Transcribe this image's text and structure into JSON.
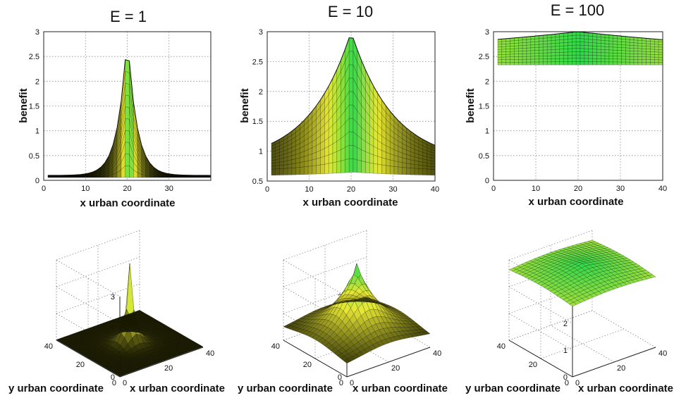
{
  "chart_data": [
    {
      "type": "area",
      "title": "E = 1",
      "xlabel": "x urban coordinate",
      "ylabel": "benefit",
      "xlim": [
        0,
        40
      ],
      "ylim": [
        0,
        3
      ],
      "xticks": [
        "0",
        "10",
        "20",
        "30"
      ],
      "yticks": [
        "0",
        "0.5",
        "1",
        "1.5",
        "2",
        "2.5",
        "3"
      ],
      "grid": true,
      "surface": {
        "E": 1,
        "peak_x": 20,
        "peak_value": 3.0,
        "min_edge_value": 0.1
      }
    },
    {
      "type": "area",
      "title": "E = 10",
      "xlabel": "x urban coordinate",
      "ylabel": "benefit",
      "xlim": [
        0,
        40
      ],
      "ylim": [
        0.5,
        3
      ],
      "xticks": [
        "0",
        "10",
        "20",
        "30",
        "40"
      ],
      "yticks": [
        "0.5",
        "1",
        "1.5",
        "2",
        "2.5",
        "3"
      ],
      "grid": true,
      "surface": {
        "E": 10,
        "peak_x": 20,
        "peak_value": 3.0,
        "min_edge_value": 0.8
      }
    },
    {
      "type": "area",
      "title": "E = 100",
      "xlabel": "x urban coordinate",
      "ylabel": "benefit",
      "xlim": [
        0,
        40
      ],
      "ylim": [
        0,
        3
      ],
      "xticks": [
        "0",
        "10",
        "20",
        "30",
        "40"
      ],
      "yticks": [
        "0",
        "0.5",
        "1",
        "1.5",
        "2",
        "2.5",
        "3"
      ],
      "grid": true,
      "surface": {
        "E": 100,
        "peak_x": 20,
        "peak_value": 3.0,
        "min_edge_value": 2.35
      }
    },
    {
      "type": "area",
      "title": "",
      "xlabel": "x urban coordinate",
      "ylabel": "y urban coordinate",
      "zticks": [
        "0",
        "1",
        "2",
        "3"
      ],
      "xticks": [
        "0",
        "20",
        "40"
      ],
      "yticks": [
        "0",
        "20",
        "40"
      ],
      "grid": true,
      "surface": {
        "E": 1,
        "peak_value": 3.0,
        "min_edge_value": 0.02
      }
    },
    {
      "type": "area",
      "title": "",
      "xlabel": "x urban coordinate",
      "ylabel": "y urban coordinate",
      "zticks": [
        "0",
        "1",
        "2",
        "3"
      ],
      "xticks": [
        "0",
        "20",
        "40"
      ],
      "yticks": [
        "0",
        "20",
        "40"
      ],
      "grid": true,
      "surface": {
        "E": 10,
        "peak_value": 3.0,
        "min_edge_value": 0.35
      }
    },
    {
      "type": "area",
      "title": "",
      "xlabel": "x urban coordinate",
      "ylabel": "y urban coordinate",
      "zticks": [
        "0",
        "1",
        "2",
        "3"
      ],
      "xticks": [
        "0",
        "20",
        "40"
      ],
      "yticks": [
        "0",
        "20",
        "40"
      ],
      "grid": true,
      "surface": {
        "E": 100,
        "peak_value": 3.0,
        "min_edge_value": 1.9
      }
    }
  ],
  "colors": {
    "surface_low": "#1a1a00",
    "surface_mid": "#e8e835",
    "surface_high": "#2fd84a",
    "mesh_line": "#000000",
    "grid": "#8a8a8a"
  }
}
